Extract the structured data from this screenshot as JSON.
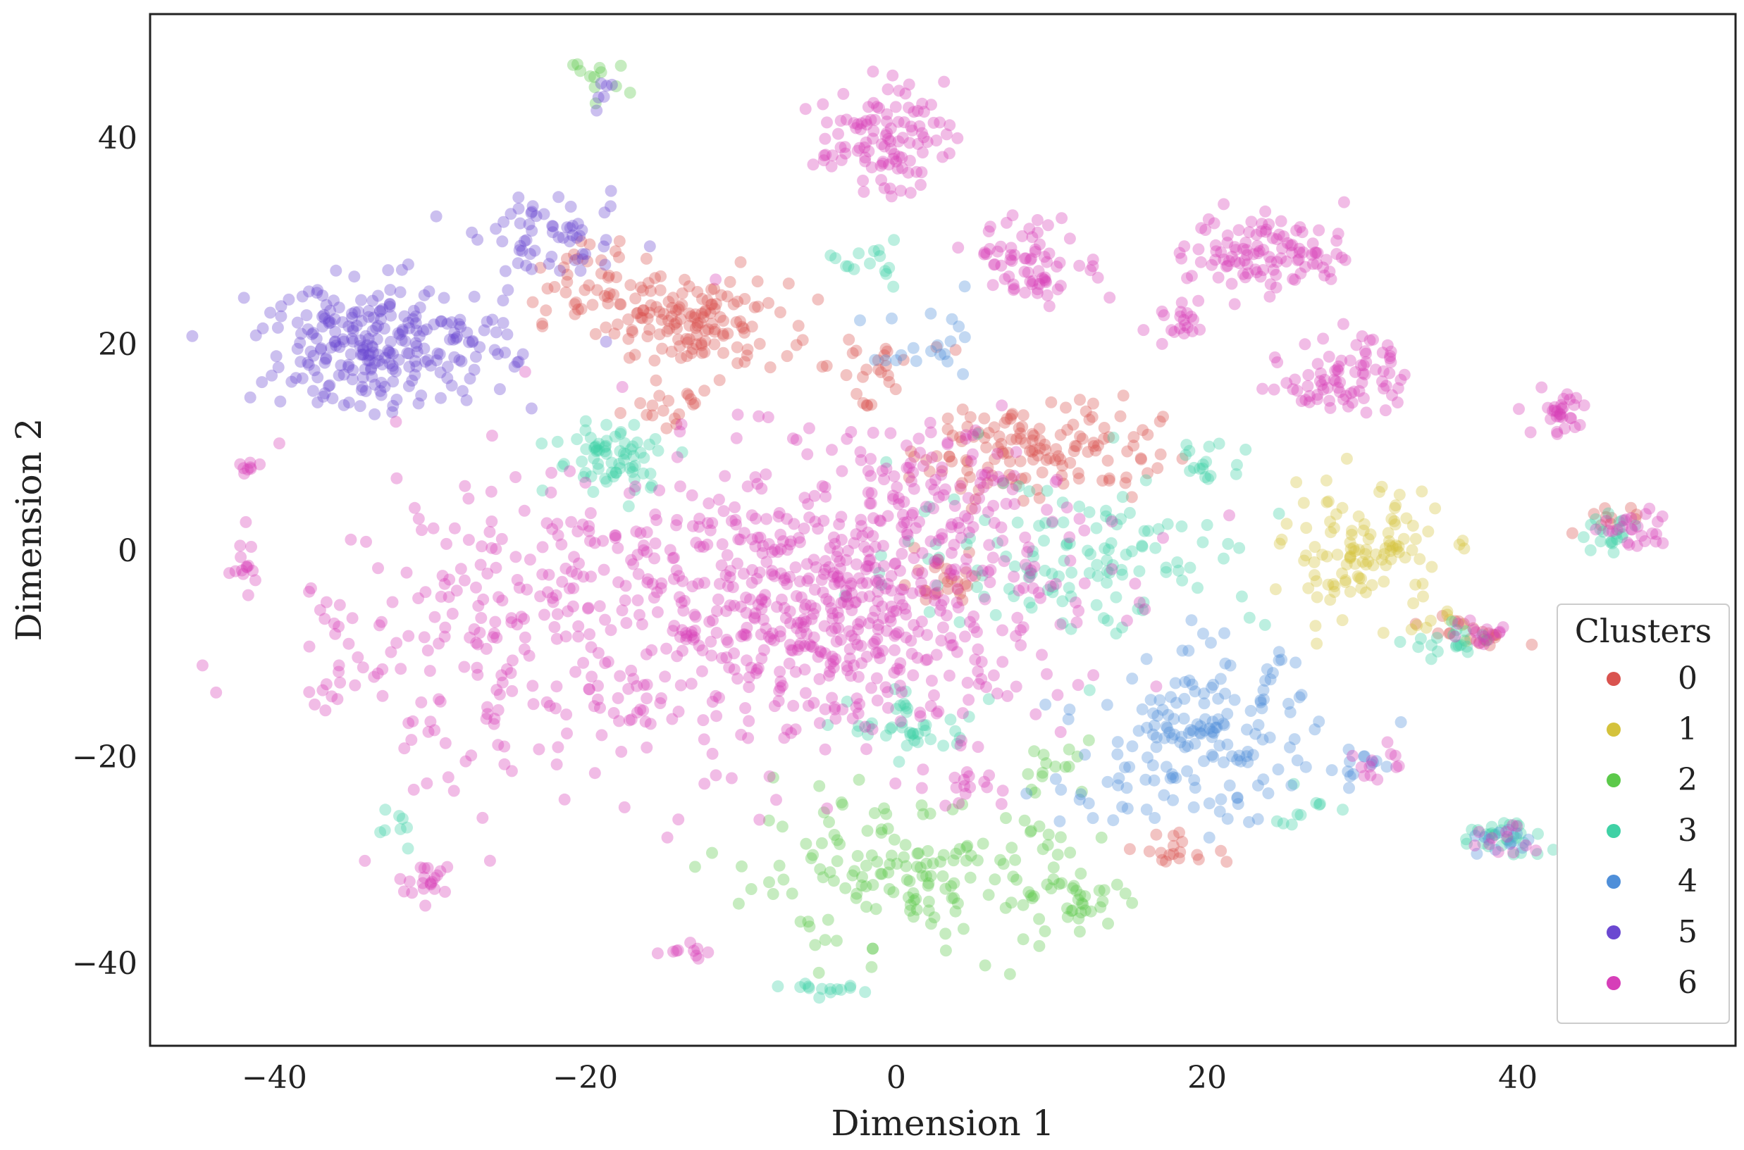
{
  "chart_data": {
    "type": "scatter",
    "title": "",
    "xlabel": "Dimension 1",
    "ylabel": "Dimension 2",
    "xlim": [
      -48,
      54
    ],
    "ylim": [
      -48,
      52
    ],
    "xticks": [
      -40,
      -20,
      0,
      20,
      40
    ],
    "yticks": [
      -40,
      -20,
      0,
      20,
      40
    ],
    "xtick_labels": [
      "−40",
      "−20",
      "0",
      "20",
      "40"
    ],
    "ytick_labels": [
      "−40",
      "−20",
      "0",
      "20",
      "40"
    ],
    "grid": false,
    "point_alpha": 0.35,
    "legend": {
      "title": "Clusters",
      "placement": "lower-right",
      "entries": [
        {
          "label": "0",
          "color": "#d9534f"
        },
        {
          "label": "1",
          "color": "#d4c23c"
        },
        {
          "label": "2",
          "color": "#5cc94a"
        },
        {
          "label": "3",
          "color": "#3fd1a5"
        },
        {
          "label": "4",
          "color": "#4f8fd9"
        },
        {
          "label": "5",
          "color": "#6b48d1"
        },
        {
          "label": "6",
          "color": "#d63fb8"
        }
      ]
    },
    "series": [
      {
        "name": "0",
        "color": "#d9534f",
        "clusters": [
          {
            "x": -13,
            "y": 22,
            "sx": 3,
            "sy": 2,
            "n": 140
          },
          {
            "x": 9,
            "y": 10,
            "sx": 4,
            "sy": 2.5,
            "n": 140
          },
          {
            "x": -20,
            "y": 26,
            "sx": 2,
            "sy": 2,
            "n": 40
          },
          {
            "x": 3,
            "y": -3,
            "sx": 1.5,
            "sy": 1.2,
            "n": 25
          },
          {
            "x": 37,
            "y": -8,
            "sx": 1.5,
            "sy": 1,
            "n": 20
          },
          {
            "x": 18,
            "y": -29,
            "sx": 1.2,
            "sy": 1,
            "n": 18
          },
          {
            "x": 46,
            "y": 3,
            "sx": 1,
            "sy": 1,
            "n": 10
          },
          {
            "x": -2,
            "y": 18,
            "sx": 2,
            "sy": 1.5,
            "n": 25
          },
          {
            "x": -15,
            "y": 14,
            "sx": 2,
            "sy": 1.5,
            "n": 20
          }
        ]
      },
      {
        "name": "1",
        "color": "#d4c23c",
        "clusters": [
          {
            "x": 30,
            "y": 0,
            "sx": 2.5,
            "sy": 3,
            "n": 110
          },
          {
            "x": 35,
            "y": -7,
            "sx": 1.2,
            "sy": 1,
            "n": 10
          }
        ]
      },
      {
        "name": "2",
        "color": "#5cc94a",
        "clusters": [
          {
            "x": 1,
            "y": -32,
            "sx": 6,
            "sy": 3.5,
            "n": 170
          },
          {
            "x": 12,
            "y": -34,
            "sx": 1.5,
            "sy": 1.2,
            "n": 25
          },
          {
            "x": -19,
            "y": 46,
            "sx": 1,
            "sy": 0.8,
            "n": 12
          },
          {
            "x": 10,
            "y": -21,
            "sx": 1.5,
            "sy": 1.5,
            "n": 15
          }
        ]
      },
      {
        "name": "3",
        "color": "#3fd1a5",
        "clusters": [
          {
            "x": -18,
            "y": 9,
            "sx": 2,
            "sy": 1.8,
            "n": 70
          },
          {
            "x": 12,
            "y": 0,
            "sx": 6,
            "sy": 4,
            "n": 130
          },
          {
            "x": 1,
            "y": -17,
            "sx": 2,
            "sy": 1.5,
            "n": 40
          },
          {
            "x": 39,
            "y": -28,
            "sx": 1.5,
            "sy": 1,
            "n": 30
          },
          {
            "x": 36,
            "y": -9,
            "sx": 1.5,
            "sy": 1,
            "n": 20
          },
          {
            "x": 46,
            "y": 1.5,
            "sx": 1,
            "sy": 0.8,
            "n": 20
          },
          {
            "x": -4,
            "y": -42.5,
            "sx": 1.2,
            "sy": 0.3,
            "n": 14
          },
          {
            "x": -2,
            "y": 28,
            "sx": 1,
            "sy": 1,
            "n": 15
          },
          {
            "x": 20,
            "y": 9,
            "sx": 1.5,
            "sy": 1,
            "n": 15
          },
          {
            "x": 26,
            "y": -25,
            "sx": 1,
            "sy": 1.5,
            "n": 10
          },
          {
            "x": -32,
            "y": -27,
            "sx": 0.8,
            "sy": 1,
            "n": 8
          }
        ]
      },
      {
        "name": "4",
        "color": "#4f8fd9",
        "clusters": [
          {
            "x": 20,
            "y": -18,
            "sx": 3.5,
            "sy": 4,
            "n": 160
          },
          {
            "x": 2,
            "y": 19,
            "sx": 2,
            "sy": 2,
            "n": 20
          },
          {
            "x": 30,
            "y": -21,
            "sx": 1,
            "sy": 1,
            "n": 12
          },
          {
            "x": 39,
            "y": -28,
            "sx": 1.5,
            "sy": 1,
            "n": 12
          },
          {
            "x": 13,
            "y": -24,
            "sx": 2,
            "sy": 1.5,
            "n": 15
          }
        ]
      },
      {
        "name": "5",
        "color": "#6b48d1",
        "clusters": [
          {
            "x": -33,
            "y": 20,
            "sx": 4,
            "sy": 3,
            "n": 260
          },
          {
            "x": -22,
            "y": 30,
            "sx": 2.5,
            "sy": 2,
            "n": 60
          },
          {
            "x": -19,
            "y": 45,
            "sx": 0.8,
            "sy": 0.8,
            "n": 6
          }
        ]
      },
      {
        "name": "6",
        "color": "#d63fb8",
        "clusters": [
          {
            "x": -5,
            "y": -5,
            "sx": 8,
            "sy": 7,
            "n": 700
          },
          {
            "x": -25,
            "y": -8,
            "sx": 7,
            "sy": 8,
            "n": 220
          },
          {
            "x": -1,
            "y": 40,
            "sx": 2,
            "sy": 2.5,
            "n": 110
          },
          {
            "x": 24,
            "y": 29,
            "sx": 2.5,
            "sy": 2,
            "n": 110
          },
          {
            "x": 29,
            "y": 17,
            "sx": 2,
            "sy": 2,
            "n": 80
          },
          {
            "x": 9,
            "y": 28,
            "sx": 2,
            "sy": 2,
            "n": 70
          },
          {
            "x": 43,
            "y": 13.5,
            "sx": 1,
            "sy": 1.2,
            "n": 30
          },
          {
            "x": 47,
            "y": 2,
            "sx": 1.2,
            "sy": 1,
            "n": 25
          },
          {
            "x": -30,
            "y": -32,
            "sx": 1,
            "sy": 1,
            "n": 20
          },
          {
            "x": -42,
            "y": -2,
            "sx": 0.6,
            "sy": 1,
            "n": 12
          },
          {
            "x": -36,
            "y": -10,
            "sx": 1,
            "sy": 4,
            "n": 20
          },
          {
            "x": 3,
            "y": 6,
            "sx": 3,
            "sy": 3,
            "n": 60
          },
          {
            "x": 18,
            "y": 22,
            "sx": 1,
            "sy": 1,
            "n": 20
          },
          {
            "x": 38,
            "y": -8,
            "sx": 1,
            "sy": 1,
            "n": 15
          },
          {
            "x": 31,
            "y": -21,
            "sx": 1,
            "sy": 1,
            "n": 12
          },
          {
            "x": 39,
            "y": -28,
            "sx": 1,
            "sy": 1,
            "n": 12
          },
          {
            "x": -13,
            "y": -39,
            "sx": 1,
            "sy": 0.5,
            "n": 10
          },
          {
            "x": -42,
            "y": 7.5,
            "sx": 0.5,
            "sy": 0.8,
            "n": 8
          },
          {
            "x": 4,
            "y": -23,
            "sx": 1,
            "sy": 1,
            "n": 15
          }
        ]
      }
    ]
  }
}
